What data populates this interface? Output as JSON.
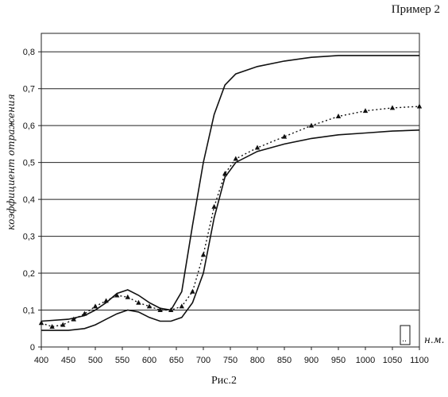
{
  "header": {
    "label": "Пример 2"
  },
  "caption": "Рис.2",
  "chart_data": {
    "type": "line",
    "xlabel": "н.м.",
    "ylabel": "коэффициент отражения",
    "xlim": [
      400,
      1100
    ],
    "ylim": [
      0,
      0.85
    ],
    "x_ticks": [
      "400",
      "450",
      "500",
      "550",
      "600",
      "650",
      "700",
      "750",
      "800",
      "850",
      "900",
      "950",
      "1000",
      "1050",
      "1100"
    ],
    "y_ticks": [
      "0",
      "0,1",
      "0,2",
      "0,3",
      "0,4",
      "0,5",
      "0,6",
      "0,7",
      "0,8"
    ],
    "grid": "horizontal",
    "legend_marker": "..",
    "series": [
      {
        "style": "solid",
        "x": [
          400,
          450,
          480,
          500,
          520,
          540,
          560,
          580,
          600,
          620,
          640,
          660,
          680,
          700,
          720,
          740,
          760,
          800,
          850,
          900,
          950,
          1000,
          1050,
          1100
        ],
        "values": [
          0.07,
          0.075,
          0.085,
          0.1,
          0.12,
          0.145,
          0.155,
          0.14,
          0.12,
          0.105,
          0.1,
          0.15,
          0.33,
          0.5,
          0.63,
          0.71,
          0.74,
          0.76,
          0.775,
          0.785,
          0.79,
          0.79,
          0.79,
          0.79
        ]
      },
      {
        "style": "solid",
        "x": [
          400,
          450,
          480,
          500,
          520,
          540,
          560,
          580,
          600,
          620,
          640,
          660,
          680,
          700,
          720,
          740,
          760,
          800,
          850,
          900,
          950,
          1000,
          1050,
          1100
        ],
        "values": [
          0.045,
          0.045,
          0.05,
          0.06,
          0.075,
          0.09,
          0.1,
          0.095,
          0.08,
          0.07,
          0.07,
          0.08,
          0.12,
          0.2,
          0.35,
          0.46,
          0.5,
          0.53,
          0.55,
          0.565,
          0.575,
          0.58,
          0.585,
          0.588
        ]
      },
      {
        "style": "dotted-triangles",
        "x": [
          400,
          420,
          440,
          460,
          480,
          500,
          520,
          540,
          560,
          580,
          600,
          620,
          640,
          660,
          680,
          700,
          720,
          740,
          760,
          800,
          850,
          900,
          950,
          1000,
          1050,
          1100
        ],
        "values": [
          0.065,
          0.055,
          0.06,
          0.075,
          0.09,
          0.11,
          0.125,
          0.14,
          0.135,
          0.12,
          0.11,
          0.1,
          0.1,
          0.11,
          0.15,
          0.25,
          0.38,
          0.47,
          0.51,
          0.54,
          0.57,
          0.6,
          0.625,
          0.64,
          0.648,
          0.652
        ]
      }
    ]
  }
}
